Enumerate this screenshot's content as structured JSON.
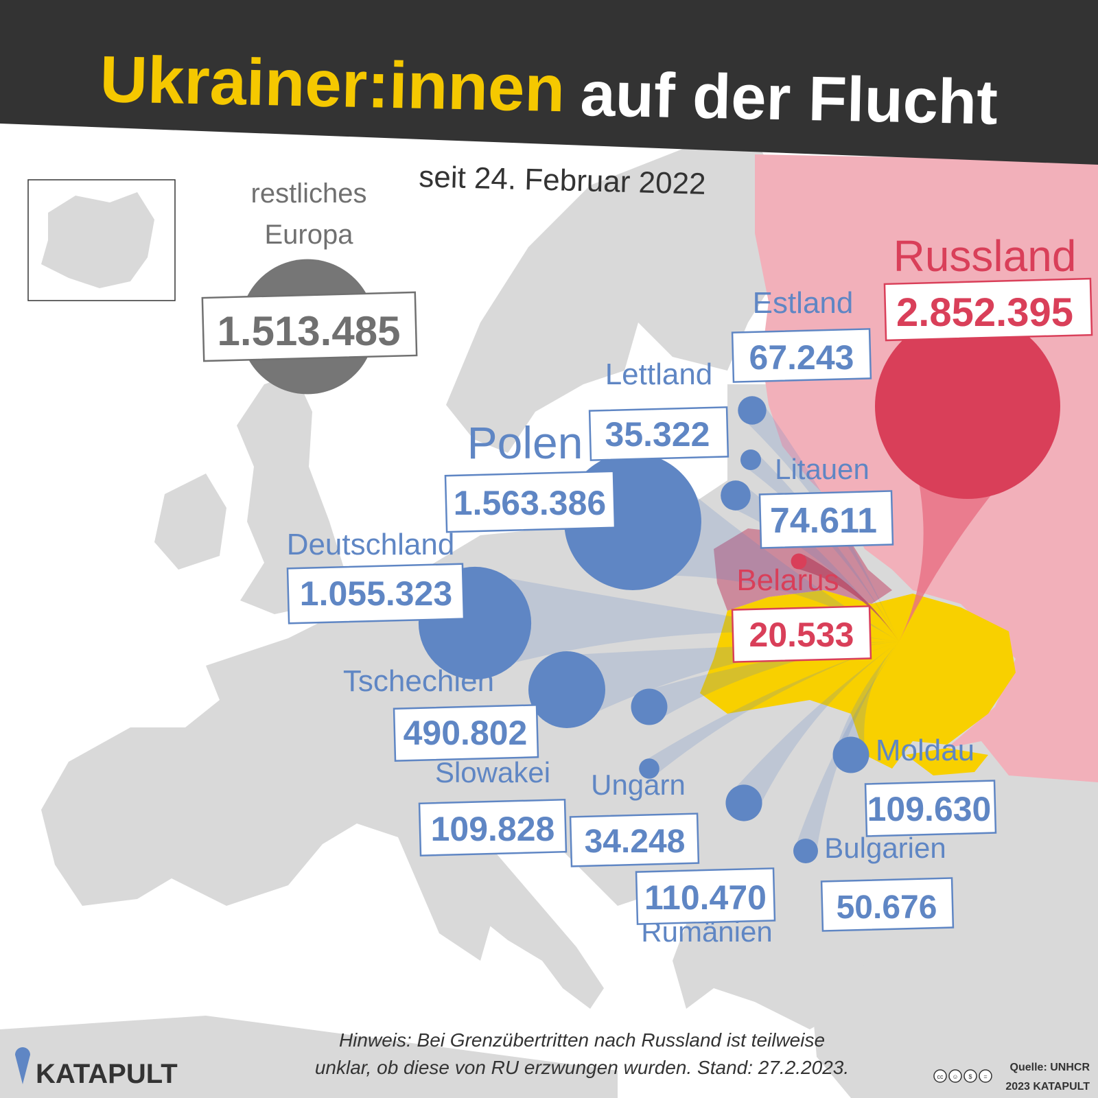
{
  "title": {
    "part1": "Ukrainer:innen",
    "part2": "auf der Flucht"
  },
  "subtitle": "seit 24. Februar 2022",
  "colors": {
    "header_bg": "#333333",
    "title_yellow": "#f5c800",
    "title_white": "#ffffff",
    "land": "#d9d9d9",
    "russia_fill": "#f2b0ba",
    "russia_accent": "#d93f59",
    "ukraine": "#f8d000",
    "blue": "#5f86c4",
    "blue_light": "#dfe7f4",
    "gray_bubble": "#767676",
    "text_dark": "#333333"
  },
  "countries": [
    {
      "id": "rest",
      "name": "restliches Europa",
      "name_lines": [
        "restliches",
        "Europa"
      ],
      "value_text": "1.513.485",
      "value": 1513485,
      "group": "rest"
    },
    {
      "id": "polen",
      "name": "Polen",
      "value_text": "1.563.386",
      "value": 1563386,
      "group": "eu"
    },
    {
      "id": "deutschland",
      "name": "Deutschland",
      "value_text": "1.055.323",
      "value": 1055323,
      "group": "eu"
    },
    {
      "id": "tschechien",
      "name": "Tschechien",
      "value_text": "490.802",
      "value": 490802,
      "group": "eu"
    },
    {
      "id": "slowakei",
      "name": "Slowakei",
      "value_text": "109.828",
      "value": 109828,
      "group": "eu"
    },
    {
      "id": "ungarn",
      "name": "Ungarn",
      "value_text": "34.248",
      "value": 34248,
      "group": "eu"
    },
    {
      "id": "rumaenien",
      "name": "Rumänien",
      "value_text": "110.470",
      "value": 110470,
      "group": "eu"
    },
    {
      "id": "bulgarien",
      "name": "Bulgarien",
      "value_text": "50.676",
      "value": 50676,
      "group": "eu"
    },
    {
      "id": "moldau",
      "name": "Moldau",
      "value_text": "109.630",
      "value": 109630,
      "group": "eu"
    },
    {
      "id": "estland",
      "name": "Estland",
      "value_text": "67.243",
      "value": 67243,
      "group": "eu"
    },
    {
      "id": "lettland",
      "name": "Lettland",
      "value_text": "35.322",
      "value": 35322,
      "group": "eu"
    },
    {
      "id": "litauen",
      "name": "Litauen",
      "value_text": "74.611",
      "value": 74611,
      "group": "eu"
    },
    {
      "id": "belarus",
      "name": "Belarus",
      "value_text": "20.533",
      "value": 20533,
      "group": "ru"
    },
    {
      "id": "russland",
      "name": "Russland",
      "value_text": "2.852.395",
      "value": 2852395,
      "group": "ru"
    }
  ],
  "note": {
    "line1": "Hinweis: Bei Grenzübertritten nach Russland ist teilweise",
    "line2": "unklar, ob diese von RU erzwungen wurden. Stand: 27.2.2023."
  },
  "brand": {
    "name": "KATAPULT"
  },
  "source": {
    "line1": "Quelle: UNHCR",
    "line2": "2023 KATAPULT",
    "license_icons": [
      "cc",
      "by",
      "nc",
      "nd"
    ]
  }
}
